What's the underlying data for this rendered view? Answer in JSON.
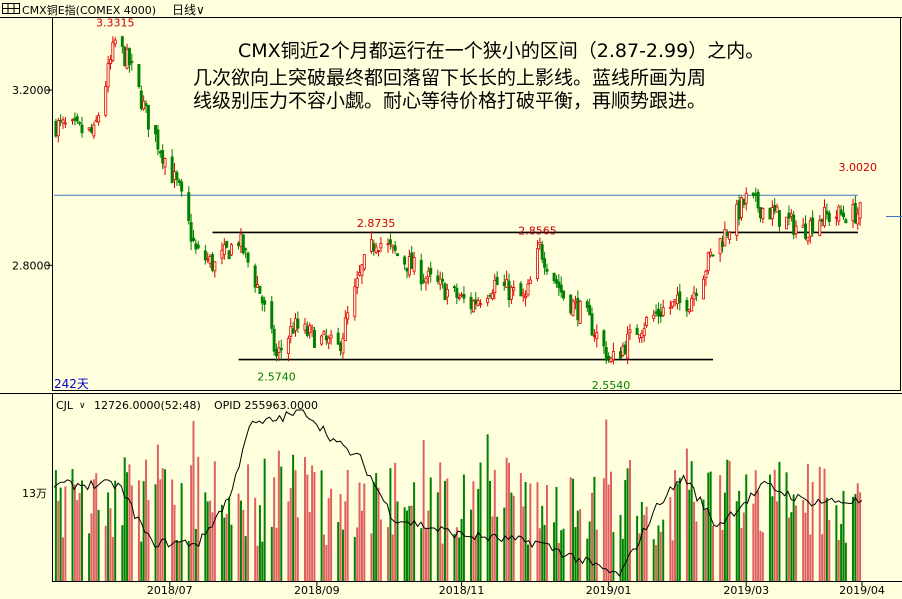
{
  "header": {
    "instrument": "CMX铜E指(COMEX 4000)",
    "period": "日线",
    "period_arrow": "chevron-down-icon"
  },
  "annotation": {
    "line1": "CMX铜近2个月都运行在一个狭小的区间（2.87-2.99）之内。",
    "line2": "几次欲向上突破最终都回落留下长长的上影线。蓝线所画为周",
    "line3": "线级别压力不容小觑。耐心等待价格打破平衡，再顺势跟进。"
  },
  "chart_data": [
    {
      "type": "candlestick",
      "bars_label": "242天",
      "ylim": [
        2.52,
        3.36
      ],
      "yticks": [
        {
          "value": 3.2,
          "label": "3.2000"
        },
        {
          "value": 2.8,
          "label": "2.8000"
        }
      ],
      "price_labels": [
        {
          "value": 3.3315,
          "label": "3.3315",
          "date": "2018-06-08",
          "color": "#cc0000"
        },
        {
          "value": 2.8735,
          "label": "2.8735",
          "date": "2018-09-26",
          "color": "#cc0000"
        },
        {
          "value": 2.8565,
          "label": "2.8565",
          "date": "2018-12-03",
          "color": "#cc0000"
        },
        {
          "value": 3.002,
          "label": "3.0020",
          "date": "2019-04-17",
          "color": "#cc0000"
        },
        {
          "value": 2.574,
          "label": "2.5740",
          "date": "2018-08-15",
          "color": "#008000"
        },
        {
          "value": 2.554,
          "label": "2.5540",
          "date": "2019-01-03",
          "color": "#008000"
        }
      ],
      "lines": [
        {
          "kind": "horizontal",
          "value": 2.875,
          "from": "2018-07-19",
          "to": "2019-04-18",
          "color": "#000000"
        },
        {
          "kind": "horizontal",
          "value": 2.585,
          "from": "2018-07-30",
          "to": "2019-02-15",
          "color": "#000000"
        },
        {
          "kind": "horizontal",
          "value": 2.96,
          "from": "2018-05-01",
          "to": "2019-04-18",
          "color": "#4472c4"
        }
      ],
      "colors": {
        "up": "#e00000",
        "down": "#008000",
        "background": "#ffffdd"
      },
      "anchors": [
        [
          "2018-05-14",
          3.12
        ],
        [
          "2018-05-30",
          3.1
        ],
        [
          "2018-06-08",
          3.31
        ],
        [
          "2018-06-14",
          3.26
        ],
        [
          "2018-06-22",
          3.13
        ],
        [
          "2018-07-05",
          2.97
        ],
        [
          "2018-07-12",
          2.83
        ],
        [
          "2018-07-20",
          2.8
        ],
        [
          "2018-07-30",
          2.86
        ],
        [
          "2018-08-08",
          2.74
        ],
        [
          "2018-08-15",
          2.59
        ],
        [
          "2018-08-22",
          2.66
        ],
        [
          "2018-08-30",
          2.64
        ],
        [
          "2018-09-10",
          2.61
        ],
        [
          "2018-09-20",
          2.79
        ],
        [
          "2018-09-26",
          2.86
        ],
        [
          "2018-10-08",
          2.81
        ],
        [
          "2018-10-20",
          2.76
        ],
        [
          "2018-11-05",
          2.71
        ],
        [
          "2018-11-15",
          2.76
        ],
        [
          "2018-11-28",
          2.72
        ],
        [
          "2018-12-04",
          2.84
        ],
        [
          "2018-12-14",
          2.73
        ],
        [
          "2018-12-24",
          2.68
        ],
        [
          "2019-01-03",
          2.58
        ],
        [
          "2019-01-15",
          2.66
        ],
        [
          "2019-01-25",
          2.7
        ],
        [
          "2019-02-05",
          2.72
        ],
        [
          "2019-02-14",
          2.82
        ],
        [
          "2019-02-22",
          2.89
        ],
        [
          "2019-03-01",
          2.95
        ],
        [
          "2019-03-15",
          2.91
        ],
        [
          "2019-03-25",
          2.88
        ],
        [
          "2019-04-01",
          2.91
        ],
        [
          "2019-04-18",
          2.92
        ]
      ]
    },
    {
      "type": "bar",
      "title": "CJL",
      "legend": {
        "cjl": "12726.0000(52:48)",
        "opid": "OPID 255963.0000"
      },
      "ylabel": "13万",
      "xlabels": [
        {
          "label": "2018/07",
          "date": "2018-07-01"
        },
        {
          "label": "2018/09",
          "date": "2018-09-01"
        },
        {
          "label": "2018/11",
          "date": "2018-11-01"
        },
        {
          "label": "2019/01",
          "date": "2019-01-02"
        },
        {
          "label": "2019/03",
          "date": "2019-03-01"
        },
        {
          "label": "2019/04",
          "date": "2019-04-20"
        }
      ]
    }
  ]
}
